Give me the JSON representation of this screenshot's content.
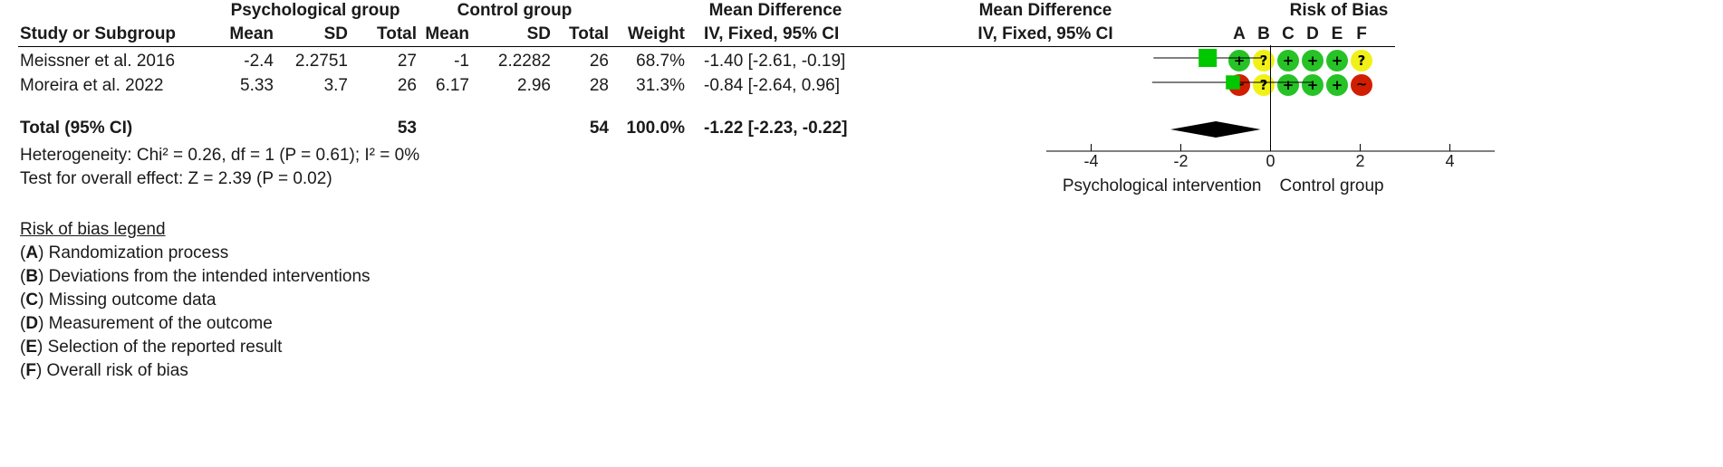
{
  "headers": {
    "group1": "Psychological group",
    "group2": "Control group",
    "md_col": "Mean Difference",
    "md_plot": "Mean Difference",
    "rob": "Risk of Bias",
    "study": "Study or Subgroup",
    "mean1": "Mean",
    "sd1": "SD",
    "total1": "Total",
    "mean2": "Mean",
    "sd2": "SD",
    "total2": "Total",
    "weight": "Weight",
    "method_col": "IV, Fixed, 95% CI",
    "method_plot": "IV, Fixed, 95% CI",
    "rob_domains": [
      "A",
      "B",
      "C",
      "D",
      "E",
      "F"
    ]
  },
  "rows": [
    {
      "study": "Meissner et al. 2016",
      "mean1": "-2.4",
      "sd1": "2.2751",
      "total1": "27",
      "mean2": "-1",
      "sd2": "2.2282",
      "total2": "26",
      "weight": "68.7%",
      "ci_text": "-1.40 [-2.61, -0.19]",
      "rob": [
        "low",
        "some",
        "low",
        "low",
        "low",
        "some"
      ]
    },
    {
      "study": "Moreira et al. 2022",
      "mean1": "5.33",
      "sd1": "3.7",
      "total1": "26",
      "mean2": "6.17",
      "sd2": "2.96",
      "total2": "28",
      "weight": "31.3%",
      "ci_text": "-0.84 [-2.64, 0.96]",
      "rob": [
        "high",
        "some",
        "low",
        "low",
        "low",
        "high"
      ]
    }
  ],
  "total": {
    "label": "Total (95% CI)",
    "total1": "53",
    "total2": "54",
    "weight": "100.0%",
    "ci_text": "-1.22 [-2.23, -0.22]"
  },
  "heterogeneity": "Heterogeneity: Chi² = 0.26, df = 1 (P = 0.61); I² = 0%",
  "overall_effect": "Test for overall effect: Z = 2.39 (P = 0.02)",
  "rob_symbols": {
    "low": "+",
    "some": "?",
    "high": "~"
  },
  "colors": {
    "square": "#00c800",
    "diamond": "#000000",
    "low": "#26c226",
    "some": "#f1f117",
    "high": "#d11e00"
  },
  "legend": {
    "title": "Risk of bias legend",
    "items": [
      {
        "key": "A",
        "text": "Randomization process"
      },
      {
        "key": "B",
        "text": "Deviations from the intended interventions"
      },
      {
        "key": "C",
        "text": "Missing outcome data"
      },
      {
        "key": "D",
        "text": "Measurement of the outcome"
      },
      {
        "key": "E",
        "text": "Selection of the reported result"
      },
      {
        "key": "F",
        "text": "Overall risk of bias"
      }
    ]
  },
  "chart_data": {
    "type": "forest",
    "xlim": [
      -5,
      5
    ],
    "xticks": [
      -4,
      -2,
      0,
      2,
      4
    ],
    "xtick_labels": [
      "-4",
      "-2",
      "0",
      "2",
      "4"
    ],
    "left_label": "Psychological intervention",
    "right_label": "Control group",
    "studies": [
      {
        "name": "Meissner et al. 2016",
        "md": -1.4,
        "lower": -2.61,
        "upper": -0.19,
        "weight": 68.7
      },
      {
        "name": "Moreira et al. 2022",
        "md": -0.84,
        "lower": -2.64,
        "upper": 0.96,
        "weight": 31.3
      }
    ],
    "pooled": {
      "md": -1.22,
      "lower": -2.23,
      "upper": -0.22
    }
  }
}
